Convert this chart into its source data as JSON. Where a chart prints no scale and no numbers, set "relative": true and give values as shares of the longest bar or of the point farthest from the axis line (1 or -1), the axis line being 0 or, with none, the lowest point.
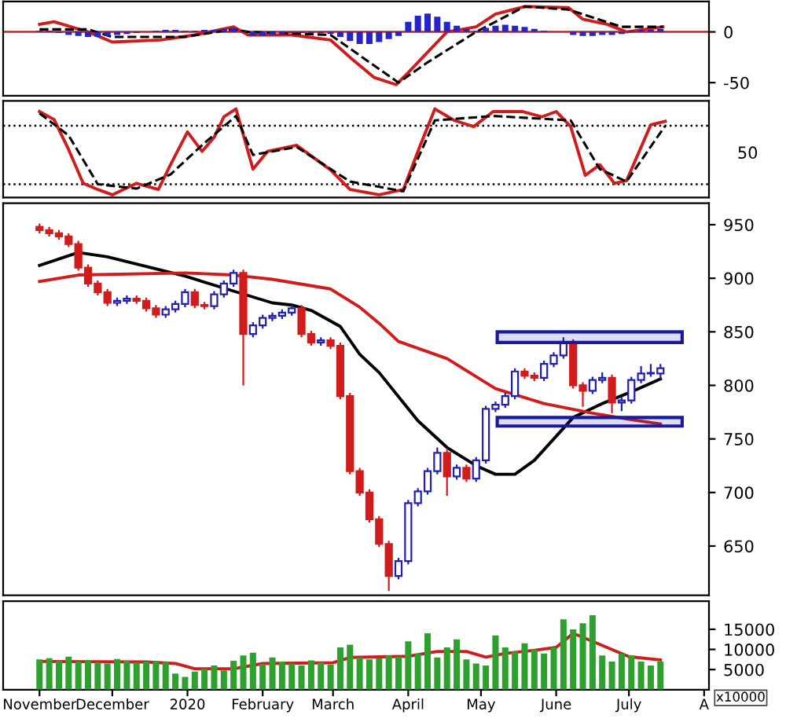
{
  "chart_data": [
    {
      "type": "line",
      "xlim": [
        "2019-10-17",
        "2020-08-03"
      ],
      "ylim": [
        -63,
        30
      ],
      "yticks": [
        0,
        -50
      ],
      "tick_labels": "y",
      "ref_lines": [
        {
          "axis": "y",
          "value": 0,
          "color": "#d01c1c",
          "line_style": "solid"
        }
      ],
      "series": [
        {
          "type": "bar",
          "color": "#2626c8",
          "x": [
            "2019-11-01",
            "2019-11-05",
            "2019-11-09",
            "2019-11-13",
            "2019-11-17",
            "2019-11-21",
            "2019-11-25",
            "2019-11-29",
            "2019-12-03",
            "2019-12-07",
            "2019-12-11",
            "2019-12-15",
            "2019-12-19",
            "2019-12-23",
            "2019-12-27",
            "2019-12-31",
            "2020-01-04",
            "2020-01-08",
            "2020-01-12",
            "2020-01-16",
            "2020-01-20",
            "2020-01-24",
            "2020-01-28",
            "2020-02-01",
            "2020-02-05",
            "2020-02-09",
            "2020-02-13",
            "2020-02-17",
            "2020-02-21",
            "2020-02-25",
            "2020-02-29",
            "2020-03-04",
            "2020-03-08",
            "2020-03-12",
            "2020-03-16",
            "2020-03-20",
            "2020-03-24",
            "2020-03-28",
            "2020-04-01",
            "2020-04-05",
            "2020-04-09",
            "2020-04-13",
            "2020-04-17",
            "2020-04-21",
            "2020-04-25",
            "2020-04-29",
            "2020-05-03",
            "2020-05-07",
            "2020-05-11",
            "2020-05-15",
            "2020-05-19",
            "2020-05-23",
            "2020-05-27",
            "2020-05-31",
            "2020-06-04",
            "2020-06-08",
            "2020-06-12",
            "2020-06-16",
            "2020-06-20",
            "2020-06-24",
            "2020-06-28",
            "2020-07-02",
            "2020-07-06",
            "2020-07-10",
            "2020-07-14"
          ],
          "values": [
            1,
            1,
            -1,
            -3,
            -4,
            -5,
            -5,
            -4,
            -3,
            -2,
            -1,
            0,
            1,
            2,
            2,
            1,
            1,
            2,
            2,
            3,
            4,
            1,
            -4,
            -4,
            -3,
            -2,
            -1,
            -1,
            -1,
            -1,
            -2,
            -5,
            -9,
            -12,
            -12,
            -10,
            -7,
            -4,
            10,
            16,
            18,
            15,
            10,
            6,
            3,
            1,
            4,
            6,
            7,
            6,
            5,
            3,
            1,
            0,
            0,
            -3,
            -4,
            -4,
            -3,
            -3,
            -2,
            1,
            2,
            2,
            3
          ]
        },
        {
          "type": "line",
          "color": "#d01c1c",
          "x": [
            "2019-11-01",
            "2019-11-07",
            "2019-11-21",
            "2019-12-01",
            "2019-12-21",
            "2020-01-04",
            "2020-01-20",
            "2020-01-26",
            "2020-02-13",
            "2020-02-29",
            "2020-03-08",
            "2020-03-18",
            "2020-03-27",
            "2020-04-01",
            "2020-04-09",
            "2020-04-17",
            "2020-04-29",
            "2020-05-07",
            "2020-05-19",
            "2020-06-06",
            "2020-06-12",
            "2020-06-22",
            "2020-06-30",
            "2020-07-15"
          ],
          "values": [
            7.5,
            10,
            0,
            -10,
            -8,
            -3,
            5,
            -3,
            -3,
            -8,
            -25,
            -45,
            -52,
            -40,
            -20,
            0,
            5,
            17.5,
            25,
            24,
            12.5,
            7.5,
            0,
            5
          ]
        },
        {
          "type": "line",
          "color": "#000000",
          "line_style": "dashed",
          "x": [
            "2019-11-01",
            "2019-11-21",
            "2019-12-01",
            "2019-12-31",
            "2020-01-20",
            "2020-01-26",
            "2020-02-29",
            "2020-03-28",
            "2020-04-09",
            "2020-04-29",
            "2020-05-19",
            "2020-06-06",
            "2020-06-28",
            "2020-07-15"
          ],
          "values": [
            2.5,
            2.5,
            -5,
            -5,
            2.5,
            0,
            -3,
            -50,
            -30,
            0,
            25,
            22,
            5,
            5
          ]
        }
      ]
    },
    {
      "type": "line",
      "xlim": [
        "2019-10-17",
        "2020-08-03"
      ],
      "relative": true,
      "tick_labels": false,
      "annotations": [
        "50"
      ],
      "ref_lines": [
        {
          "axis": "y",
          "value": 0.81,
          "color": "#000000",
          "line_style": "dotted"
        },
        {
          "axis": "y",
          "value": 0.15,
          "color": "#000000",
          "line_style": "dotted"
        }
      ],
      "series": [
        {
          "type": "line",
          "color": "#d01c1c",
          "x": [
            "2019-11-01",
            "2019-11-07",
            "2019-11-13",
            "2019-11-19",
            "2019-11-25",
            "2019-12-01",
            "2019-12-11",
            "2019-12-20",
            "2019-12-25",
            "2020-01-01",
            "2020-01-07",
            "2020-01-12",
            "2020-01-16",
            "2020-01-21",
            "2020-01-28",
            "2020-02-03",
            "2020-02-15",
            "2020-02-29",
            "2020-03-08",
            "2020-03-20",
            "2020-03-30",
            "2020-04-06",
            "2020-04-12",
            "2020-04-20",
            "2020-04-28",
            "2020-05-06",
            "2020-05-18",
            "2020-05-26",
            "2020-06-01",
            "2020-06-07",
            "2020-06-13",
            "2020-06-19",
            "2020-06-25",
            "2020-06-30",
            "2020-07-10",
            "2020-07-16"
          ],
          "values": [
            0.97,
            0.88,
            0.54,
            0.16,
            0.09,
            0.03,
            0.16,
            0.09,
            0.37,
            0.74,
            0.52,
            0.68,
            0.91,
            1,
            0.32,
            0.52,
            0.59,
            0.31,
            0.09,
            0.03,
            0.09,
            0.59,
            1,
            0.87,
            0.8,
            0.97,
            0.97,
            0.91,
            0.97,
            0.8,
            0.25,
            0.37,
            0.16,
            0.19,
            0.82,
            0.86
          ]
        },
        {
          "type": "line",
          "color": "#000000",
          "line_style": "dashed",
          "x": [
            "2019-11-01",
            "2019-11-13",
            "2019-11-25",
            "2019-12-11",
            "2019-12-25",
            "2020-01-07",
            "2020-01-21",
            "2020-01-28",
            "2020-02-15",
            "2020-03-08",
            "2020-03-30",
            "2020-04-12",
            "2020-05-06",
            "2020-06-07",
            "2020-06-19",
            "2020-06-30",
            "2020-07-16"
          ],
          "values": [
            0.95,
            0.7,
            0.15,
            0.1,
            0.26,
            0.59,
            0.92,
            0.48,
            0.57,
            0.18,
            0.07,
            0.87,
            0.92,
            0.87,
            0.32,
            0.18,
            0.81
          ]
        }
      ]
    },
    {
      "type": "candlestick",
      "xlim": [
        "2019-10-17",
        "2020-08-03"
      ],
      "ylim": [
        604,
        970
      ],
      "yticks": [
        650,
        700,
        750,
        800,
        850,
        900,
        950
      ],
      "tick_labels": "y",
      "x": [
        "2019-11-01",
        "2019-11-05",
        "2019-11-09",
        "2019-11-13",
        "2019-11-17",
        "2019-11-21",
        "2019-11-25",
        "2019-11-29",
        "2019-12-03",
        "2019-12-07",
        "2019-12-11",
        "2019-12-15",
        "2019-12-19",
        "2019-12-23",
        "2019-12-27",
        "2019-12-31",
        "2020-01-04",
        "2020-01-08",
        "2020-01-12",
        "2020-01-16",
        "2020-01-20",
        "2020-01-24",
        "2020-01-28",
        "2020-02-01",
        "2020-02-05",
        "2020-02-09",
        "2020-02-13",
        "2020-02-17",
        "2020-02-21",
        "2020-02-25",
        "2020-02-29",
        "2020-03-04",
        "2020-03-08",
        "2020-03-12",
        "2020-03-16",
        "2020-03-20",
        "2020-03-24",
        "2020-03-28",
        "2020-04-01",
        "2020-04-05",
        "2020-04-09",
        "2020-04-13",
        "2020-04-17",
        "2020-04-21",
        "2020-04-25",
        "2020-04-29",
        "2020-05-03",
        "2020-05-07",
        "2020-05-11",
        "2020-05-15",
        "2020-05-19",
        "2020-05-23",
        "2020-05-27",
        "2020-05-31",
        "2020-06-04",
        "2020-06-08",
        "2020-06-12",
        "2020-06-16",
        "2020-06-20",
        "2020-06-24",
        "2020-06-28",
        "2020-07-02",
        "2020-07-06",
        "2020-07-10",
        "2020-07-14"
      ],
      "ohlc": [
        [
          948,
          951,
          942,
          945
        ],
        [
          945,
          948,
          939,
          942
        ],
        [
          942,
          945,
          936,
          939
        ],
        [
          939,
          942,
          929,
          932
        ],
        [
          932,
          935,
          907,
          910
        ],
        [
          910,
          913,
          892,
          895
        ],
        [
          895,
          898,
          884,
          887
        ],
        [
          887,
          890,
          874,
          877
        ],
        [
          877,
          882,
          874,
          879
        ],
        [
          879,
          884,
          876,
          881
        ],
        [
          881,
          884,
          876,
          879
        ],
        [
          879,
          882,
          869,
          872
        ],
        [
          872,
          875,
          863,
          866
        ],
        [
          866,
          874,
          863,
          871
        ],
        [
          871,
          879,
          868,
          876
        ],
        [
          876,
          890,
          873,
          887
        ],
        [
          887,
          890,
          872,
          875
        ],
        [
          875,
          878,
          871,
          874
        ],
        [
          874,
          888,
          871,
          885
        ],
        [
          885,
          898,
          882,
          895
        ],
        [
          895,
          908,
          892,
          905
        ],
        [
          905,
          908,
          800,
          848
        ],
        [
          848,
          859,
          845,
          856
        ],
        [
          856,
          866,
          853,
          863
        ],
        [
          863,
          868,
          860,
          865
        ],
        [
          865,
          871,
          862,
          868
        ],
        [
          868,
          875,
          865,
          872
        ],
        [
          872,
          875,
          845,
          848
        ],
        [
          848,
          851,
          837,
          840
        ],
        [
          840,
          845,
          837,
          842
        ],
        [
          842,
          845,
          834,
          837
        ],
        [
          837,
          840,
          787,
          790
        ],
        [
          790,
          793,
          717,
          720
        ],
        [
          720,
          723,
          697,
          700
        ],
        [
          700,
          703,
          672,
          675
        ],
        [
          675,
          678,
          649,
          652
        ],
        [
          652,
          655,
          608,
          622
        ],
        [
          622,
          639,
          619,
          636
        ],
        [
          636,
          693,
          633,
          690
        ],
        [
          690,
          704,
          687,
          701
        ],
        [
          701,
          723,
          698,
          720
        ],
        [
          720,
          742,
          717,
          737
        ],
        [
          737,
          740,
          697,
          715
        ],
        [
          715,
          726,
          712,
          723
        ],
        [
          723,
          726,
          710,
          713
        ],
        [
          713,
          733,
          710,
          730
        ],
        [
          730,
          781,
          727,
          778
        ],
        [
          778,
          785,
          775,
          782
        ],
        [
          782,
          793,
          779,
          790
        ],
        [
          790,
          816,
          787,
          813
        ],
        [
          813,
          816,
          806,
          809
        ],
        [
          809,
          812,
          804,
          807
        ],
        [
          807,
          823,
          804,
          820
        ],
        [
          820,
          831,
          817,
          828
        ],
        [
          828,
          845,
          825,
          840
        ],
        [
          840,
          843,
          797,
          800
        ],
        [
          800,
          803,
          780,
          795
        ],
        [
          795,
          808,
          792,
          805
        ],
        [
          805,
          812,
          802,
          807
        ],
        [
          807,
          810,
          774,
          784
        ],
        [
          784,
          789,
          776,
          786
        ],
        [
          786,
          808,
          783,
          805
        ],
        [
          805,
          818,
          802,
          811
        ],
        [
          811,
          820,
          808,
          811
        ],
        [
          811,
          820,
          806,
          816
        ]
      ],
      "series": [
        {
          "type": "line",
          "color": "#000000",
          "x": [
            "2019-11-01",
            "2019-11-17",
            "2019-11-29",
            "2019-12-15",
            "2019-12-31",
            "2020-01-20",
            "2020-02-05",
            "2020-02-13",
            "2020-02-21",
            "2020-03-04",
            "2020-03-12",
            "2020-03-20",
            "2020-04-05",
            "2020-04-17",
            "2020-04-29",
            "2020-05-07",
            "2020-05-15",
            "2020-05-23",
            "2020-05-31",
            "2020-06-08",
            "2020-06-20",
            "2020-07-02",
            "2020-07-14"
          ],
          "values": [
            912,
            924,
            920,
            911,
            902,
            888,
            877,
            875,
            870,
            855,
            829,
            812,
            767,
            742,
            725,
            717,
            717,
            730,
            750,
            770,
            783,
            794,
            806
          ]
        },
        {
          "type": "line",
          "color": "#d01c1c",
          "x": [
            "2019-11-01",
            "2019-11-17",
            "2019-12-31",
            "2020-01-20",
            "2020-02-05",
            "2020-02-29",
            "2020-03-12",
            "2020-03-20",
            "2020-03-28",
            "2020-04-17",
            "2020-05-07",
            "2020-05-27",
            "2020-06-16",
            "2020-07-02",
            "2020-07-14"
          ],
          "values": [
            897,
            903,
            905,
            903,
            899,
            890,
            873,
            858,
            841,
            825,
            797,
            783,
            774,
            768,
            764
          ]
        }
      ],
      "bands": [
        {
          "axis": "y",
          "from": 840,
          "to": 850,
          "color": "#1a1aa0"
        },
        {
          "axis": "y",
          "from": 762,
          "to": 770,
          "color": "#1a1aa0"
        }
      ]
    },
    {
      "type": "bar",
      "xlim": [
        "2019-10-17",
        "2020-08-03"
      ],
      "ylim": [
        0,
        22000
      ],
      "yticks": [
        5000,
        10000,
        15000
      ],
      "color": "#2ea02e",
      "xticks": [
        {
          "value": "2019-11-01",
          "label": "November"
        },
        {
          "value": "2019-12-01",
          "label": "December"
        },
        {
          "value": "2020-01-01",
          "label": "2020"
        },
        {
          "value": "2020-02-01",
          "label": "February"
        },
        {
          "value": "2020-03-01",
          "label": "March"
        },
        {
          "value": "2020-04-01",
          "label": "April"
        },
        {
          "value": "2020-05-01",
          "label": "May"
        },
        {
          "value": "2020-06-01",
          "label": "June"
        },
        {
          "value": "2020-07-01",
          "label": "July"
        },
        {
          "value": "2020-08-01",
          "label": "A"
        }
      ],
      "annotations": [
        "x10000"
      ],
      "x": [
        "2019-11-01",
        "2019-11-05",
        "2019-11-09",
        "2019-11-13",
        "2019-11-17",
        "2019-11-21",
        "2019-11-25",
        "2019-11-29",
        "2019-12-03",
        "2019-12-07",
        "2019-12-11",
        "2019-12-15",
        "2019-12-19",
        "2019-12-23",
        "2019-12-27",
        "2019-12-31",
        "2020-01-04",
        "2020-01-08",
        "2020-01-12",
        "2020-01-16",
        "2020-01-20",
        "2020-01-24",
        "2020-01-28",
        "2020-02-01",
        "2020-02-05",
        "2020-02-09",
        "2020-02-13",
        "2020-02-17",
        "2020-02-21",
        "2020-02-25",
        "2020-02-29",
        "2020-03-04",
        "2020-03-08",
        "2020-03-12",
        "2020-03-16",
        "2020-03-20",
        "2020-03-24",
        "2020-03-28",
        "2020-04-01",
        "2020-04-05",
        "2020-04-09",
        "2020-04-13",
        "2020-04-17",
        "2020-04-21",
        "2020-04-25",
        "2020-04-29",
        "2020-05-03",
        "2020-05-07",
        "2020-05-11",
        "2020-05-15",
        "2020-05-19",
        "2020-05-23",
        "2020-05-27",
        "2020-05-31",
        "2020-06-04",
        "2020-06-08",
        "2020-06-12",
        "2020-06-16",
        "2020-06-20",
        "2020-06-24",
        "2020-06-28",
        "2020-07-02",
        "2020-07-06",
        "2020-07-10",
        "2020-07-14"
      ],
      "values": [
        7500,
        7800,
        7200,
        8200,
        7000,
        7400,
        6800,
        6500,
        7600,
        7200,
        6800,
        7000,
        7100,
        6900,
        4000,
        3200,
        4500,
        5200,
        6000,
        4800,
        7200,
        8500,
        9200,
        6400,
        8000,
        7000,
        6500,
        6000,
        7300,
        6800,
        6200,
        10500,
        11200,
        8000,
        7500,
        7800,
        8500,
        8200,
        12000,
        9000,
        14000,
        8000,
        10500,
        12500,
        7500,
        6500,
        6000,
        13500,
        10500,
        9500,
        11500,
        10000,
        9000,
        10500,
        17500,
        15000,
        16500,
        18500,
        8500,
        7000,
        9000,
        8500,
        7000,
        6000,
        7000
      ],
      "series": [
        {
          "type": "line",
          "color": "#d01c1c",
          "x": [
            "2019-11-01",
            "2019-12-15",
            "2019-12-27",
            "2020-01-04",
            "2020-01-20",
            "2020-02-01",
            "2020-03-01",
            "2020-03-08",
            "2020-04-01",
            "2020-04-13",
            "2020-04-25",
            "2020-05-03",
            "2020-05-11",
            "2020-05-23",
            "2020-06-01",
            "2020-06-08",
            "2020-06-20",
            "2020-07-01",
            "2020-07-14"
          ],
          "values": [
            7000,
            6900,
            6500,
            5200,
            5200,
            6500,
            6700,
            8000,
            8300,
            9500,
            9500,
            8100,
            9000,
            9800,
            10500,
            14000,
            11000,
            8200,
            7400
          ]
        }
      ]
    }
  ]
}
